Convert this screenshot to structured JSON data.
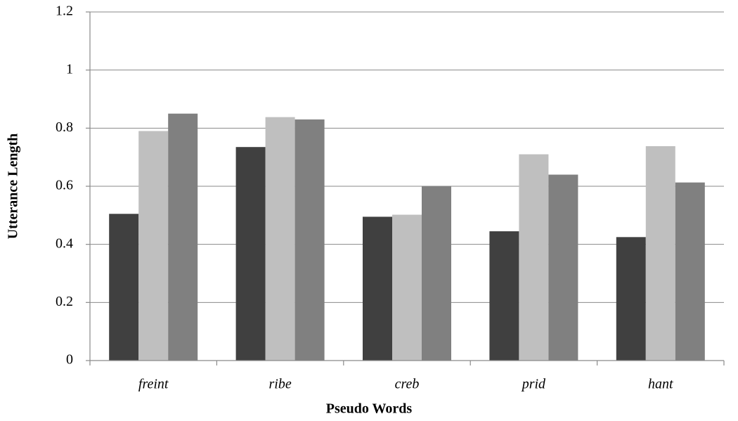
{
  "chart_data": {
    "type": "bar",
    "x_label": "Pseudo Words",
    "y_label": "Utterance Length",
    "categories": [
      "freint",
      "ribe",
      "creb",
      "prid",
      "hant"
    ],
    "series": [
      {
        "color": "#404040",
        "values": [
          0.505,
          0.735,
          0.495,
          0.445,
          0.425
        ]
      },
      {
        "color": "#bfbfbf",
        "values": [
          0.79,
          0.838,
          0.502,
          0.71,
          0.738
        ]
      },
      {
        "color": "#808080",
        "values": [
          0.85,
          0.83,
          0.6,
          0.64,
          0.613
        ]
      }
    ],
    "ylim": [
      0,
      1.2
    ],
    "yticks": [
      0,
      0.2,
      0.4,
      0.6,
      0.8,
      1,
      1.2
    ],
    "grid": true
  }
}
